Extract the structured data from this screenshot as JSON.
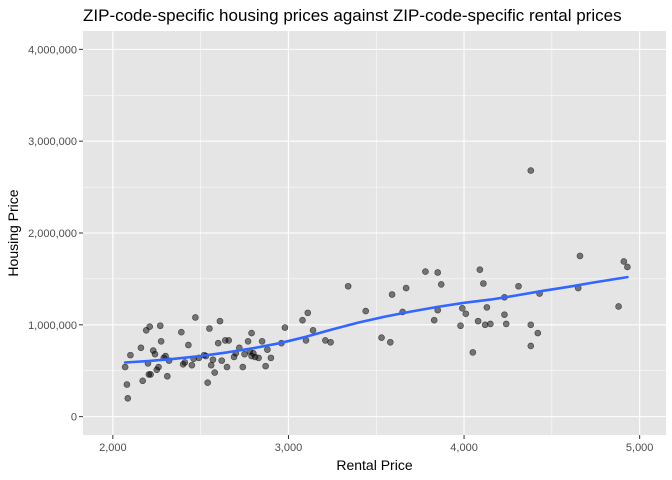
{
  "chart_data": {
    "type": "scatter",
    "title": "ZIP-code-specific housing prices against ZIP-code-specific rental prices",
    "xlabel": "Rental Price",
    "ylabel": "Housing Price",
    "xlim": [
      1830,
      5150
    ],
    "ylim": [
      -200000,
      4200000
    ],
    "x_ticks": [
      2000,
      3000,
      4000,
      5000
    ],
    "x_tick_labels": [
      "2,000",
      "3,000",
      "4,000",
      "5,000"
    ],
    "y_ticks": [
      0,
      1000000,
      2000000,
      3000000,
      4000000
    ],
    "y_tick_labels": [
      "0",
      "1,000,000",
      "2,000,000",
      "3,000,000",
      "4,000,000"
    ],
    "grid": true,
    "colors": {
      "panel": "#e5e5e5",
      "grid": "#ffffff",
      "point": "#000000",
      "smooth": "#3366ff"
    },
    "points": [
      [
        2070,
        540000
      ],
      [
        2080,
        350000
      ],
      [
        2085,
        200000
      ],
      [
        2100,
        670000
      ],
      [
        2160,
        750000
      ],
      [
        2170,
        390000
      ],
      [
        2190,
        940000
      ],
      [
        2200,
        580000
      ],
      [
        2205,
        460000
      ],
      [
        2210,
        980000
      ],
      [
        2215,
        460000
      ],
      [
        2230,
        720000
      ],
      [
        2240,
        680000
      ],
      [
        2250,
        510000
      ],
      [
        2260,
        540000
      ],
      [
        2270,
        990000
      ],
      [
        2275,
        820000
      ],
      [
        2290,
        640000
      ],
      [
        2300,
        660000
      ],
      [
        2310,
        440000
      ],
      [
        2320,
        610000
      ],
      [
        2390,
        920000
      ],
      [
        2400,
        570000
      ],
      [
        2410,
        590000
      ],
      [
        2430,
        780000
      ],
      [
        2450,
        560000
      ],
      [
        2460,
        630000
      ],
      [
        2470,
        1080000
      ],
      [
        2490,
        640000
      ],
      [
        2520,
        670000
      ],
      [
        2530,
        660000
      ],
      [
        2540,
        370000
      ],
      [
        2550,
        960000
      ],
      [
        2560,
        560000
      ],
      [
        2570,
        620000
      ],
      [
        2580,
        480000
      ],
      [
        2600,
        800000
      ],
      [
        2610,
        1040000
      ],
      [
        2620,
        610000
      ],
      [
        2640,
        830000
      ],
      [
        2650,
        540000
      ],
      [
        2660,
        830000
      ],
      [
        2690,
        650000
      ],
      [
        2700,
        690000
      ],
      [
        2720,
        750000
      ],
      [
        2740,
        540000
      ],
      [
        2750,
        680000
      ],
      [
        2770,
        820000
      ],
      [
        2780,
        710000
      ],
      [
        2790,
        660000
      ],
      [
        2790,
        910000
      ],
      [
        2800,
        690000
      ],
      [
        2810,
        650000
      ],
      [
        2830,
        640000
      ],
      [
        2850,
        820000
      ],
      [
        2870,
        550000
      ],
      [
        2880,
        730000
      ],
      [
        2900,
        640000
      ],
      [
        2960,
        800000
      ],
      [
        2980,
        970000
      ],
      [
        3080,
        1050000
      ],
      [
        3100,
        830000
      ],
      [
        3110,
        1130000
      ],
      [
        3140,
        940000
      ],
      [
        3210,
        830000
      ],
      [
        3240,
        810000
      ],
      [
        3340,
        1420000
      ],
      [
        3440,
        1150000
      ],
      [
        3530,
        860000
      ],
      [
        3580,
        810000
      ],
      [
        3590,
        1330000
      ],
      [
        3650,
        1140000
      ],
      [
        3670,
        1400000
      ],
      [
        3780,
        1580000
      ],
      [
        3830,
        1050000
      ],
      [
        3850,
        1160000
      ],
      [
        3850,
        1570000
      ],
      [
        3870,
        1440000
      ],
      [
        3980,
        990000
      ],
      [
        3990,
        1180000
      ],
      [
        4010,
        1120000
      ],
      [
        4050,
        700000
      ],
      [
        4080,
        1040000
      ],
      [
        4090,
        1600000
      ],
      [
        4110,
        1450000
      ],
      [
        4120,
        1000000
      ],
      [
        4130,
        1190000
      ],
      [
        4150,
        1010000
      ],
      [
        4230,
        1300000
      ],
      [
        4230,
        1110000
      ],
      [
        4240,
        1010000
      ],
      [
        4310,
        1420000
      ],
      [
        4380,
        2680000
      ],
      [
        4380,
        770000
      ],
      [
        4380,
        1000000
      ],
      [
        4420,
        910000
      ],
      [
        4430,
        1340000
      ],
      [
        4650,
        1400000
      ],
      [
        4660,
        1750000
      ],
      [
        4880,
        1200000
      ],
      [
        4910,
        1690000
      ],
      [
        4930,
        1630000
      ]
    ],
    "smooth_line": [
      [
        2070,
        590000
      ],
      [
        2200,
        605000
      ],
      [
        2350,
        630000
      ],
      [
        2500,
        660000
      ],
      [
        2650,
        700000
      ],
      [
        2800,
        745000
      ],
      [
        2950,
        800000
      ],
      [
        3100,
        870000
      ],
      [
        3250,
        950000
      ],
      [
        3400,
        1025000
      ],
      [
        3550,
        1090000
      ],
      [
        3700,
        1145000
      ],
      [
        3850,
        1195000
      ],
      [
        4000,
        1240000
      ],
      [
        4150,
        1275000
      ],
      [
        4300,
        1320000
      ],
      [
        4450,
        1370000
      ],
      [
        4600,
        1415000
      ],
      [
        4750,
        1465000
      ],
      [
        4930,
        1520000
      ]
    ]
  }
}
